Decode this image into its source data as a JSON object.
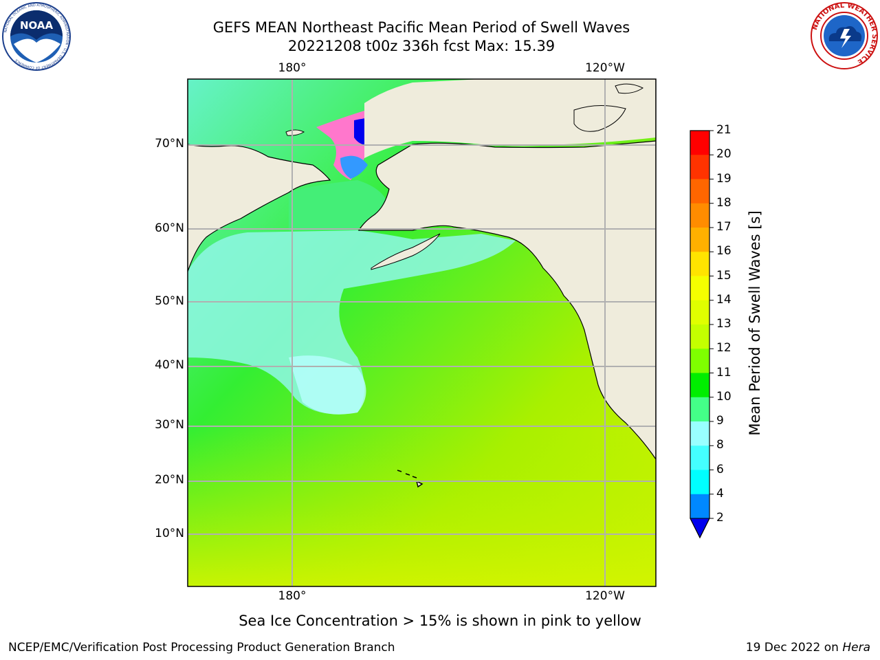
{
  "header": {
    "title_line1": "GEFS MEAN Northeast Pacific Mean Period of Swell Waves",
    "title_line2": "20221208 t00z 336h fcst   Max: 15.39"
  },
  "map": {
    "lon_labels_top": [
      "180°",
      "120°W"
    ],
    "lon_labels_bottom": [
      "180°",
      "120°W"
    ],
    "lat_labels": [
      "70°N",
      "60°N",
      "50°N",
      "40°N",
      "30°N",
      "20°N",
      "10°N"
    ],
    "note": "Sea Ice Concentration > 15% is shown in pink to yellow",
    "land_color": "#efecdc",
    "gridline_color": "#b0b0b0"
  },
  "colorbar": {
    "label": "Mean Period of Swell Waves [s]",
    "ticks": [
      "21",
      "20",
      "19",
      "18",
      "17",
      "16",
      "15",
      "14",
      "13",
      "12",
      "11",
      "10",
      "9",
      "8",
      "6",
      "4",
      "2"
    ],
    "colors": [
      "#ff0000",
      "#ff3300",
      "#ff6600",
      "#ff8c00",
      "#ffb000",
      "#ffe400",
      "#f5ff00",
      "#e0ff00",
      "#c4ff00",
      "#7fff00",
      "#00ee00",
      "#44ff88",
      "#99ffff",
      "#44ffff",
      "#00ffff",
      "#0088ff"
    ],
    "extend_color": "#0000ee"
  },
  "footer": {
    "left": "NCEP/EMC/Verification Post Processing Product Generation Branch",
    "right_prefix": "19 Dec 2022 on ",
    "right_host": "Hera"
  },
  "logos": {
    "noaa": "NOAA",
    "noaa_ring": "NATIONAL OCEANIC AND ATMOSPHERIC ADMINISTRATION · U.S. DEPARTMENT OF COMMERCE",
    "nws_ring": "NATIONAL WEATHER SERVICE"
  }
}
